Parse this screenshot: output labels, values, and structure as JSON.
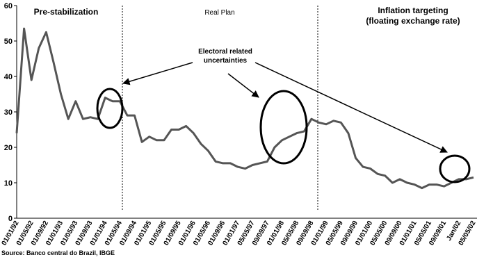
{
  "chart_data": {
    "type": "line",
    "categories": [
      "01/01/92",
      null,
      "01/05/92",
      null,
      "01/09/92",
      null,
      "01/01/93",
      null,
      "01/05/93",
      null,
      "01/09/93",
      null,
      "01/01/94",
      null,
      "01/05/94",
      null,
      "01/09/94",
      null,
      "01/01/95",
      null,
      "01/05/95",
      null,
      "01/09/95",
      null,
      "01/01/96",
      null,
      "01/05/96",
      null,
      "01/09/96",
      null,
      "01/01/97",
      null,
      "05/05/97",
      null,
      "09/09/97",
      null,
      "01/01/98",
      null,
      "05/05/98",
      null,
      "09/09/98",
      null,
      "01/01/99",
      null,
      "05/05/99",
      null,
      "09/09/99",
      null,
      "01/01/00",
      null,
      "05/05/00",
      null,
      "09/09/00",
      null,
      "01/01/01",
      null,
      "05/05/01",
      null,
      "09/09/01",
      null,
      "Jan/02",
      null,
      "05/05/02"
    ],
    "series": [
      {
        "color": "#555555",
        "values": [
          24,
          53.5,
          39,
          48,
          52.5,
          44,
          35,
          28,
          33,
          28,
          28.5,
          28,
          34,
          33,
          33,
          29,
          29,
          21.5,
          23,
          22,
          22,
          25,
          25,
          26,
          24,
          21,
          19,
          16,
          15.5,
          15.5,
          14.5,
          14,
          15,
          15.5,
          16,
          20,
          22,
          23,
          24,
          24.5,
          28,
          27,
          26.5,
          27.5,
          27,
          24,
          17,
          14.5,
          14,
          12.5,
          12,
          10,
          11,
          10,
          9.5,
          8.5,
          9.5,
          9.5,
          9,
          10,
          11,
          11,
          11.5
        ]
      }
    ],
    "ylim": [
      0,
      60
    ],
    "yticks": [
      0,
      10,
      20,
      30,
      40,
      50,
      60
    ],
    "annotations": {
      "pre_stabilization": "Pre-stabilization",
      "real_plan": "Real Plan",
      "inflation_targeting": [
        "Inflation targeting",
        "(floating exchange rate)"
      ],
      "electoral": [
        "Electoral related",
        "uncertainties"
      ]
    },
    "source": "Source: Banco central do Brazil, IBGE"
  }
}
